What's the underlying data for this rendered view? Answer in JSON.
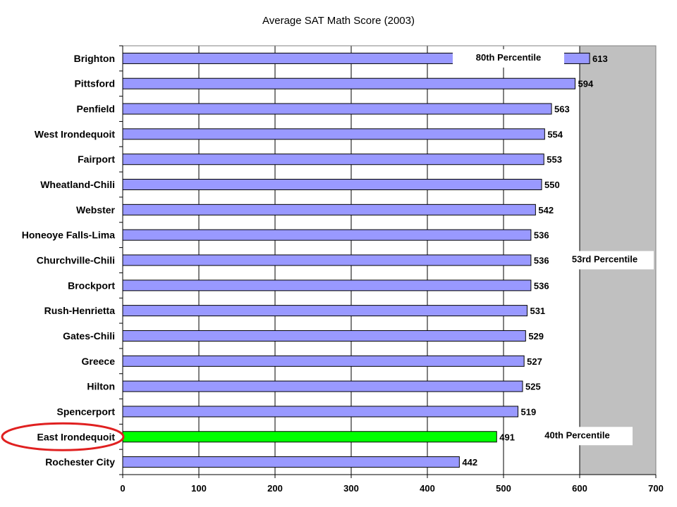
{
  "chart_data": {
    "type": "bar",
    "orientation": "horizontal",
    "title": "Average SAT Math Score (2003)",
    "xlabel": "",
    "ylabel": "",
    "xlim": [
      0,
      700
    ],
    "x_ticks": [
      0,
      100,
      200,
      300,
      400,
      500,
      600,
      700
    ],
    "grid": "vertical",
    "categories": [
      "Brighton",
      "Pittsford",
      "Penfield",
      "West Irondequoit",
      "Fairport",
      "Wheatland-Chili",
      "Webster",
      "Honeoye Falls-Lima",
      "Churchville-Chili",
      "Brockport",
      "Rush-Henrietta",
      "Gates-Chili",
      "Greece",
      "Hilton",
      "Spencerport",
      "East Irondequoit",
      "Rochester City"
    ],
    "values": [
      613,
      594,
      563,
      554,
      553,
      550,
      542,
      536,
      536,
      536,
      531,
      529,
      527,
      525,
      519,
      491,
      442
    ],
    "highlight_category": "East Irondequoit",
    "shaded_region_from": 600,
    "annotations": [
      {
        "text": "80th Percentile",
        "near": "Brighton"
      },
      {
        "text": "53rd Percentile",
        "near": "Churchville-Chili"
      },
      {
        "text": "40th Percentile",
        "near": "East Irondequoit"
      }
    ],
    "colors": {
      "bar": "#9999ff",
      "highlight_bar": "#00ff00",
      "shaded_region": "#c0c0c0",
      "highlight_ring": "#e02020"
    }
  }
}
